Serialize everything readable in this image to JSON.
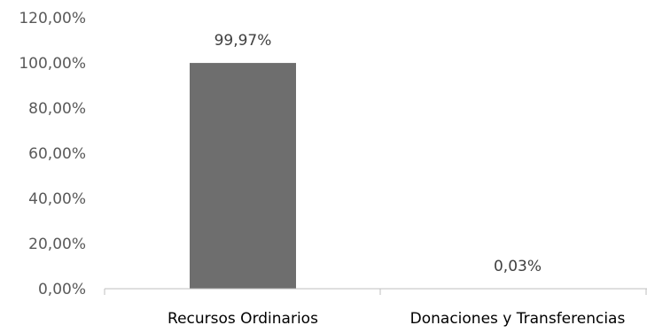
{
  "chart_data": {
    "type": "bar",
    "categories": [
      "Recursos Ordinarios",
      "Donaciones y Transferencias"
    ],
    "values": [
      99.97,
      0.03
    ],
    "data_labels": [
      "99,97%",
      "0,03%"
    ],
    "yticks": [
      0,
      20,
      40,
      60,
      80,
      100,
      120
    ],
    "ytick_labels": [
      "0,00%",
      "20,00%",
      "40,00%",
      "60,00%",
      "80,00%",
      "100,00%",
      "120,00%"
    ],
    "ylim": [
      0,
      120
    ],
    "title": "",
    "xlabel": "",
    "ylabel": "",
    "grid": false,
    "legend": "none",
    "colors": {
      "bar": "#6e6e6e",
      "axis": "#bfbfbf",
      "text": "#595959"
    }
  }
}
